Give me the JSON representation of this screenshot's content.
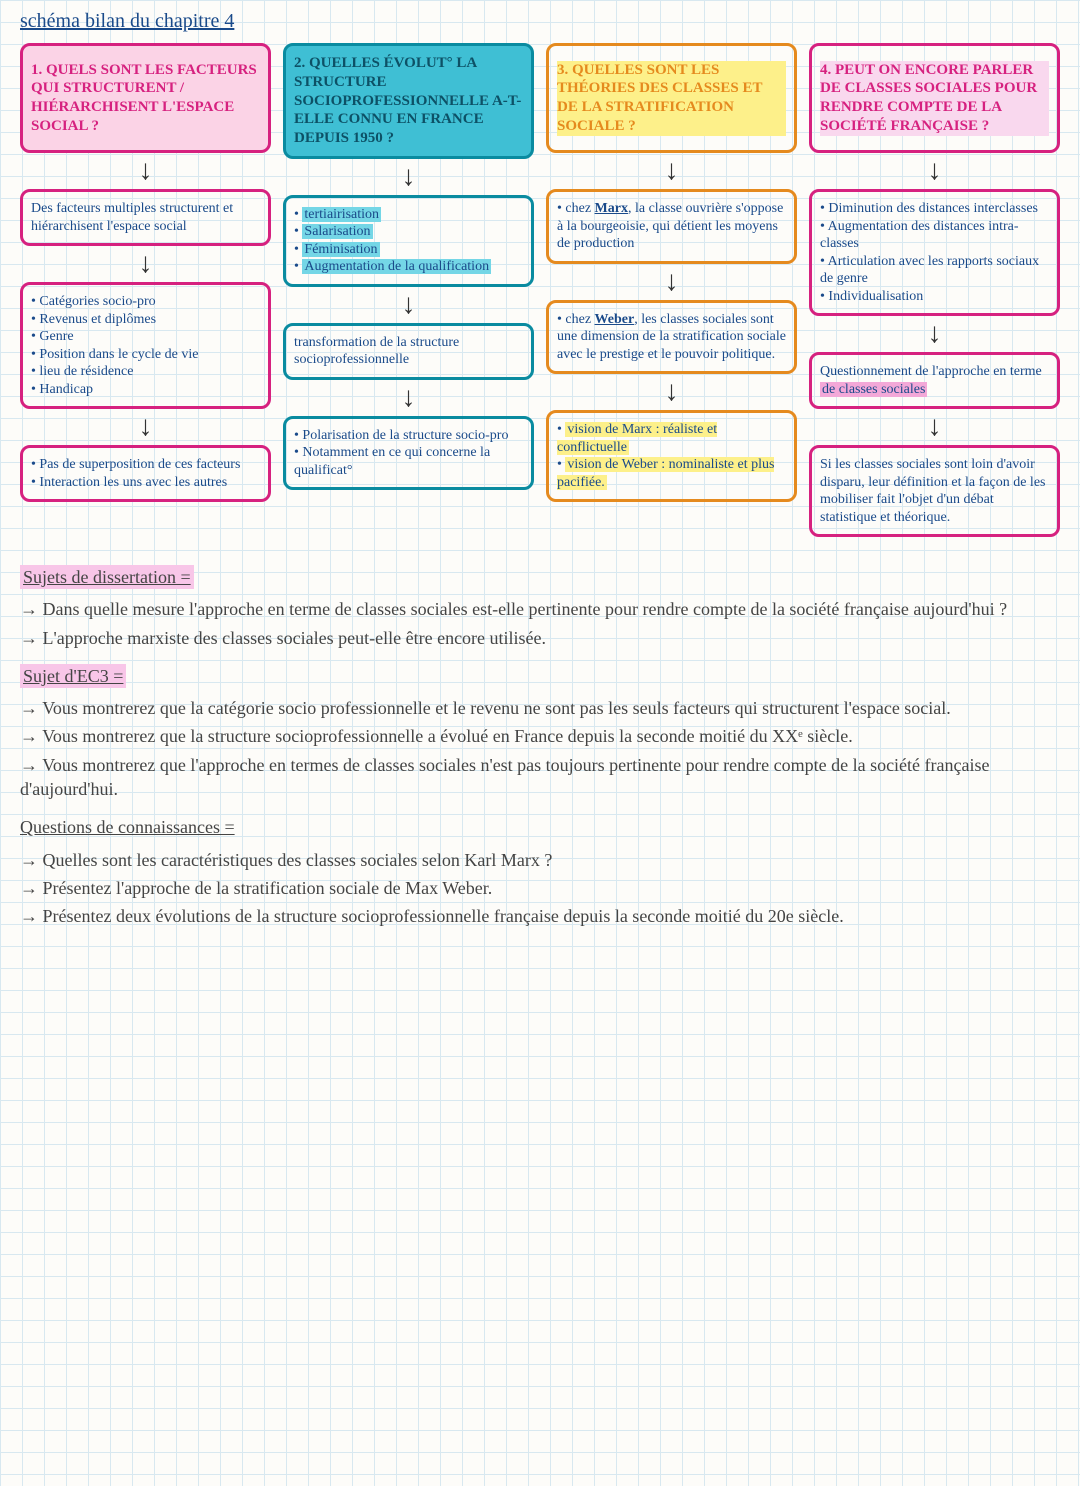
{
  "page_title": "schéma bilan du chapitre 4",
  "colors": {
    "pink": "#d6217f",
    "pink_fill": "#fbd3e6",
    "teal": "#0a8ba0",
    "teal_fill": "#3fbfd4",
    "yellow_hl": "#fdf08a",
    "orange": "#e58a1e",
    "text_ink": "#1a4a8a",
    "highlight_pink": "#f3a8d8"
  },
  "columns": [
    {
      "color": "#d6217f",
      "header_fill": "#fbd3e6",
      "header_text_color": "#d6217f",
      "header": "1. QUELS SONT LES FACTEURS QUI STRUCTURENT / HIÉRARCHISENT L'ESPACE SOCIAL ?",
      "boxes": [
        {
          "text": "Des facteurs multiples structurent et hiérarchisent l'espace social"
        },
        {
          "list": [
            "Catégories socio-pro",
            "Revenus et diplômes",
            "Genre",
            "Position dans le cycle de vie",
            "lieu de résidence",
            "Handicap"
          ]
        },
        {
          "list": [
            "Pas de superposition de ces facteurs",
            "Interaction les uns avec les autres"
          ]
        }
      ]
    },
    {
      "color": "#0a8ba0",
      "header_fill": "#3fbfd4",
      "header_text_color": "#0d5166",
      "header": "2. QUELLES ÉVOLUT° LA STRUCTURE SOCIOPROFESSIONNELLE A-T-ELLE CONNU EN FRANCE DEPUIS 1950 ?",
      "boxes": [
        {
          "list_hl": [
            "tertiairisation",
            "Salarisation",
            "Féminisation",
            "Augmentation de la qualification"
          ],
          "hl_color": "#74d6e6"
        },
        {
          "text": "transformation de la structure socioprofessionnelle"
        },
        {
          "list": [
            "Polarisation de la structure socio-pro",
            "Notamment en ce qui concerne la qualificat°"
          ]
        }
      ]
    },
    {
      "color": "#e58a1e",
      "header_fill": "transparent",
      "header_hl": "#fdf08a",
      "header_text_color": "#e58a1e",
      "header": "3. QUELLES SONT LES THÉORIES DES CLASSES ET DE LA STRATIFICATION SOCIALE ?",
      "boxes": [
        {
          "rich": "• chez <b><u>Marx</u></b>, la classe ouvrière s'oppose à la bourgeoisie, qui détient les moyens de production"
        },
        {
          "rich": "• chez <b><u>Weber</u></b>, les classes sociales sont une dimension de la stratification sociale avec le prestige et le pouvoir politique."
        },
        {
          "list_hl": [
            "vision de Marx : réaliste et conflictuelle",
            "vision de Weber : nominaliste et plus pacifiée."
          ],
          "hl_color": "#fdf08a"
        }
      ]
    },
    {
      "color": "#d6217f",
      "header_fill": "transparent",
      "header_text_color": "#d6217f",
      "header_hl": "#f9d8ee",
      "header": "4. PEUT ON ENCORE PARLER DE CLASSES SOCIALES POUR RENDRE COMPTE DE LA SOCIÉTÉ FRANÇAISE ?",
      "boxes": [
        {
          "list": [
            "Diminution des distances interclasses",
            "Augmentation des distances intra-classes",
            "Articulation avec les rapports sociaux de genre",
            "Individualisation"
          ]
        },
        {
          "rich": "Questionnement de l'approche en terme <span class='hl' style='background:#f3a8d8'>de classes sociales</span>"
        },
        {
          "text": "Si les classes sociales sont loin d'avoir disparu, leur définition et la façon de les mobiliser fait l'objet d'un débat statistique et théorique."
        }
      ]
    }
  ],
  "notes": {
    "dissertation_title": "Sujets de dissertation =",
    "dissertation": [
      "Dans quelle mesure l'approche en terme de classes sociales est-elle pertinente pour rendre compte de la société française aujourd'hui ?",
      "L'approche marxiste des classes sociales peut-elle être encore utilisée."
    ],
    "ec3_title": "Sujet d'EC3 =",
    "ec3": [
      "Vous montrerez que la catégorie socio professionnelle et le revenu ne sont pas les seuls facteurs qui structurent l'espace social.",
      "Vous montrerez que la structure socioprofessionnelle a évolué en France depuis la seconde moitié du XXᵉ siècle.",
      "Vous montrerez que l'approche en termes de classes sociales n'est pas toujours pertinente pour rendre compte de la société française d'aujourd'hui."
    ],
    "connaissances_title": "Questions de connaissances =",
    "connaissances": [
      "Quelles sont les caractéristiques des classes sociales selon Karl Marx ?",
      "Présentez l'approche de la stratification sociale de Max Weber.",
      "Présentez deux évolutions de la structure socioprofessionnelle française depuis la seconde moitié du 20e siècle."
    ]
  }
}
